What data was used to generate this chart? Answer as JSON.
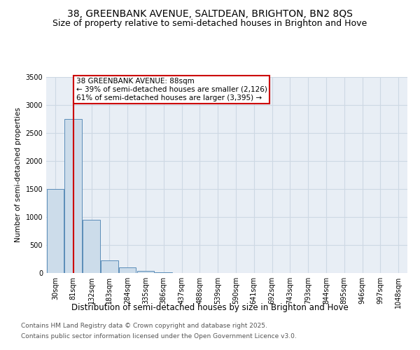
{
  "title": "38, GREENBANK AVENUE, SALTDEAN, BRIGHTON, BN2 8QS",
  "subtitle": "Size of property relative to semi-detached houses in Brighton and Hove",
  "xlabel": "Distribution of semi-detached houses by size in Brighton and Hove",
  "ylabel": "Number of semi-detached properties",
  "bin_labels": [
    "30sqm",
    "81sqm",
    "132sqm",
    "183sqm",
    "284sqm",
    "335sqm",
    "386sqm",
    "437sqm",
    "488sqm",
    "539sqm",
    "590sqm",
    "641sqm",
    "692sqm",
    "743sqm",
    "793sqm",
    "844sqm",
    "895sqm",
    "946sqm",
    "997sqm",
    "1048sqm"
  ],
  "bar_heights": [
    1500,
    2750,
    950,
    225,
    100,
    40,
    8,
    3,
    1,
    1,
    0,
    0,
    0,
    0,
    0,
    0,
    0,
    0,
    0,
    0
  ],
  "bar_color": "#ccdcea",
  "bar_edge_color": "#5b8db8",
  "property_line_x": 1,
  "annotation_title": "38 GREENBANK AVENUE: 88sqm",
  "annotation_line1": "← 39% of semi-detached houses are smaller (2,126)",
  "annotation_line2": "61% of semi-detached houses are larger (3,395) →",
  "annotation_box_color": "#ffffff",
  "annotation_border_color": "#cc0000",
  "vline_color": "#cc0000",
  "ylim": [
    0,
    3500
  ],
  "yticks": [
    0,
    500,
    1000,
    1500,
    2000,
    2500,
    3000,
    3500
  ],
  "grid_color": "#cdd8e3",
  "background_color": "#e8eef5",
  "footer_line1": "Contains HM Land Registry data © Crown copyright and database right 2025.",
  "footer_line2": "Contains public sector information licensed under the Open Government Licence v3.0.",
  "title_fontsize": 10,
  "subtitle_fontsize": 9,
  "xlabel_fontsize": 8.5,
  "ylabel_fontsize": 7.5,
  "tick_fontsize": 7,
  "footer_fontsize": 6.5,
  "annotation_fontsize": 7.5
}
